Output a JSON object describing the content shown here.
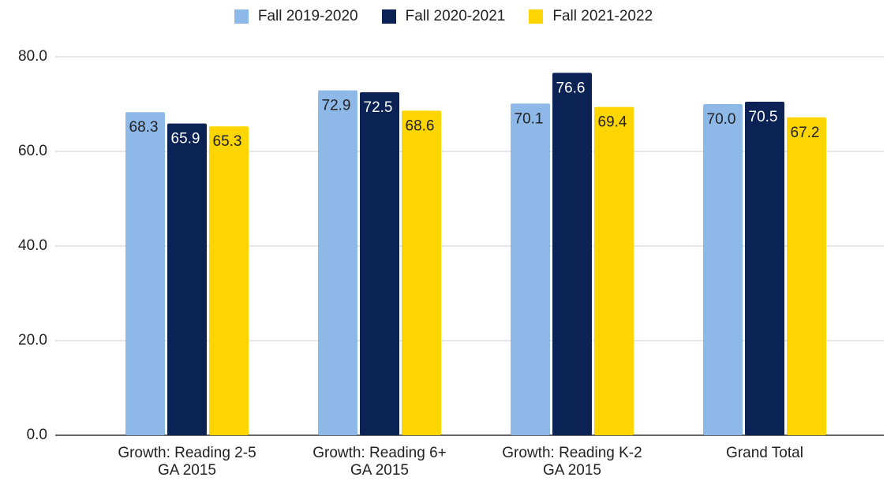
{
  "chart_data": {
    "type": "bar",
    "categories": [
      "Growth: Reading 2-5 GA 2015",
      "Growth: Reading 6+ GA 2015",
      "Growth: Reading K-2 GA 2015",
      "Grand Total"
    ],
    "series": [
      {
        "name": "Fall 2019-2020",
        "color": "#8db8e8",
        "values": [
          68.3,
          72.9,
          70.1,
          70
        ],
        "value_labels": [
          "68.3",
          "72.9",
          "70.1",
          "70.0"
        ]
      },
      {
        "name": "Fall 2020-2021",
        "color": "#0b2255",
        "values": [
          65.9,
          72.5,
          76.6,
          70.5
        ],
        "value_labels": [
          "65.9",
          "72.5",
          "76.6",
          "70.5"
        ]
      },
      {
        "name": "Fall 2021-2022",
        "color": "#fdd500",
        "values": [
          65.3,
          68.6,
          69.4,
          67.2
        ],
        "value_labels": [
          "65.3",
          "68.6",
          "69.4",
          "67.2"
        ]
      }
    ],
    "ylim": [
      0,
      80
    ],
    "yticks": [
      {
        "value": 0,
        "label": "0.0"
      },
      {
        "value": 20,
        "label": "20.0"
      },
      {
        "value": 40,
        "label": "40.0"
      },
      {
        "value": 60,
        "label": "60.0"
      },
      {
        "value": 80,
        "label": "80.0"
      }
    ],
    "grid": true,
    "legend": "top"
  }
}
